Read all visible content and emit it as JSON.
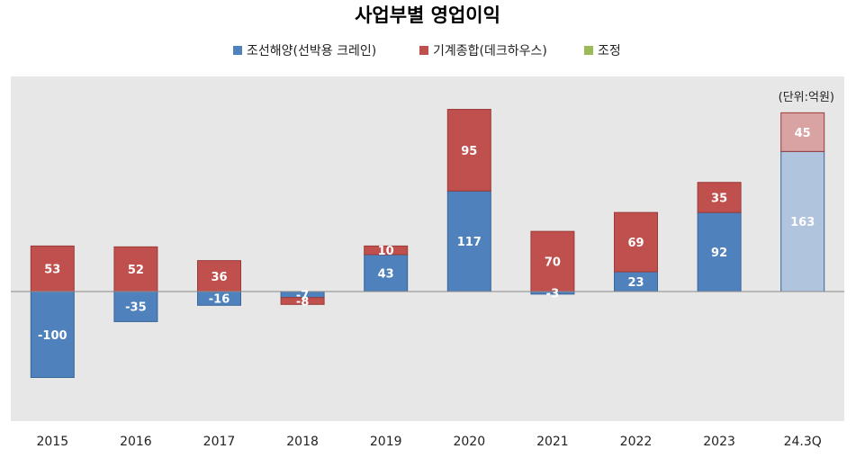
{
  "chart_data": {
    "type": "bar",
    "stacked": true,
    "title": "사업부별 영업이익",
    "unit_label": "(단위:억원)",
    "categories": [
      "2015",
      "2016",
      "2017",
      "2018",
      "2019",
      "2020",
      "2021",
      "2022",
      "2023",
      "24.3Q"
    ],
    "series": [
      {
        "name": "조선해양(선박용 크레인)",
        "color": "#4F81BD",
        "highlight_color": "#B0C4DE",
        "values": [
          -100,
          -35,
          -16,
          -7,
          43,
          117,
          -3,
          23,
          92,
          163
        ],
        "labels": [
          "-100",
          "-35",
          "-16",
          "-7",
          "43",
          "117",
          "-3",
          "23",
          "92",
          "163"
        ]
      },
      {
        "name": "기계종합(데크하우스)",
        "color": "#C0504D",
        "highlight_color": "#D8A3A2",
        "values": [
          53,
          52,
          36,
          -8,
          10,
          95,
          70,
          69,
          35,
          45
        ],
        "labels": [
          "53",
          "52",
          "36",
          "-8",
          "10",
          "95",
          "70",
          "69",
          "35",
          "45"
        ]
      },
      {
        "name": "조정",
        "color": "#9BBB59",
        "values": [
          0,
          0,
          0,
          0,
          0,
          0,
          0,
          0,
          0,
          0
        ]
      }
    ],
    "highlight_category": "24.3Q",
    "ylim": [
      -150,
      215
    ],
    "grid": false,
    "legend_position": "top",
    "plot_background": "#E7E7E7"
  }
}
